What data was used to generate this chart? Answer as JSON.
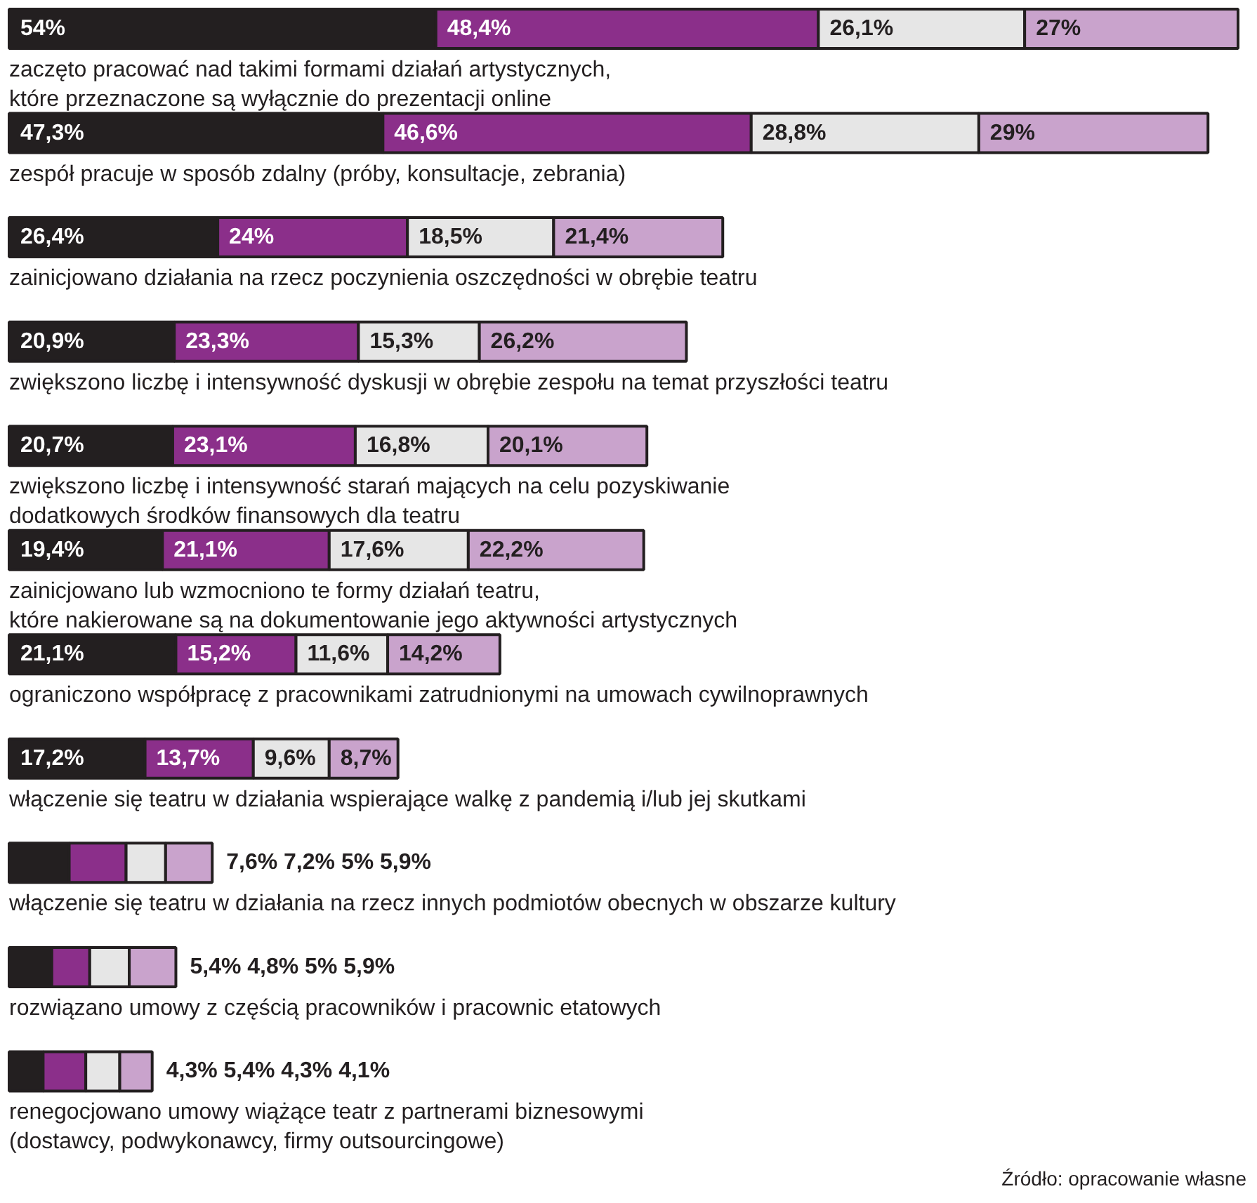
{
  "chart_data": {
    "type": "bar",
    "orientation": "horizontal",
    "stacked": true,
    "categories": [
      "zaczęto pracować nad takimi formami działań artystycznych,\nktóre przeznaczone są wyłącznie do prezentacji online",
      "zespół pracuje w sposób zdalny (próby, konsultacje, zebrania)",
      "zainicjowano działania na rzecz poczynienia oszczędności w obrębie teatru",
      "zwiększono liczbę i intensywność dyskusji w obrębie zespołu na temat przyszłości teatru",
      "zwiększono liczbę i intensywność starań mających na celu pozyskiwanie\ndodatkowych środków finansowych dla teatru",
      "zainicjowano lub wzmocniono te formy działań teatru,\nktóre nakierowane są na dokumentowanie jego aktywności artystycznych",
      "ograniczono współpracę z pracownikami zatrudnionymi na umowach cywilnoprawnych",
      "włączenie się teatru w działania wspierające walkę z pandemią i/lub jej skutkami",
      "włączenie się teatru w działania na rzecz innych podmiotów obecnych w obszarze kultury",
      "rozwiązano umowy z częścią pracowników i pracownic etatowych",
      "renegocjowano umowy wiążące teatr z partnerami biznesowymi\n(dostawcy, podwykonawcy, firmy outsourcingowe)"
    ],
    "series": [
      {
        "color": "#231f20",
        "values": [
          54,
          47.3,
          26.4,
          20.9,
          20.7,
          19.4,
          21.1,
          17.2,
          7.6,
          5.4,
          4.3
        ],
        "value_labels": [
          "54%",
          "47,3%",
          "26,4%",
          "20,9%",
          "20,7%",
          "19,4%",
          "21,1%",
          "17,2%",
          null,
          null,
          null
        ]
      },
      {
        "color": "#8b2f8a",
        "values": [
          48.4,
          46.6,
          24,
          23.3,
          23.1,
          21.1,
          15.2,
          13.7,
          7.2,
          4.8,
          5.4
        ],
        "value_labels": [
          "48,4%",
          "46,6%",
          "24%",
          "23,3%",
          "23,1%",
          "21,1%",
          "15,2%",
          "13,7%",
          null,
          null,
          null
        ]
      },
      {
        "color": "#e6e6e6",
        "values": [
          26.1,
          28.8,
          18.5,
          15.3,
          16.8,
          17.6,
          11.6,
          9.6,
          5,
          5,
          4.3
        ],
        "value_labels": [
          "26,1%",
          "28,8%",
          "18,5%",
          "15,3%",
          "16,8%",
          "17,6%",
          "11,6%",
          "9,6%",
          null,
          null,
          null
        ]
      },
      {
        "color": "#c9a3cc",
        "values": [
          27,
          29,
          21.4,
          26.2,
          20.1,
          22.2,
          14.2,
          8.7,
          5.9,
          5.9,
          4.1
        ],
        "value_labels": [
          "27%",
          "29%",
          "21,4%",
          "26,2%",
          "20,1%",
          "22,2%",
          "14,2%",
          "8,7%",
          null,
          null,
          null
        ]
      }
    ],
    "annotations": [
      "7,6%  7,2%  5%  5,9%",
      "5,4%  4,8%  5%  5,9%",
      "4,3%  5,4%  4,3%  4,1%",
      "Źródło: opracowanie własne"
    ]
  }
}
